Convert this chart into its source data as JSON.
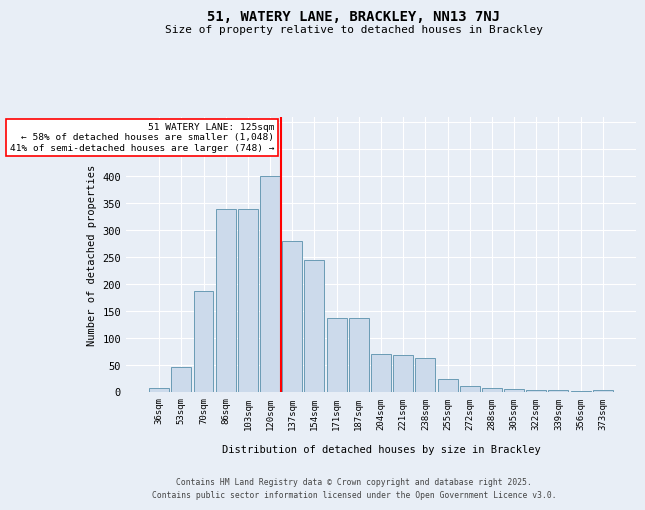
{
  "title": "51, WATERY LANE, BRACKLEY, NN13 7NJ",
  "subtitle": "Size of property relative to detached houses in Brackley",
  "xlabel": "Distribution of detached houses by size in Brackley",
  "ylabel": "Number of detached properties",
  "bar_labels": [
    "36sqm",
    "53sqm",
    "70sqm",
    "86sqm",
    "103sqm",
    "120sqm",
    "137sqm",
    "154sqm",
    "171sqm",
    "187sqm",
    "204sqm",
    "221sqm",
    "238sqm",
    "255sqm",
    "272sqm",
    "288sqm",
    "305sqm",
    "322sqm",
    "339sqm",
    "356sqm",
    "373sqm"
  ],
  "bar_heights": [
    8,
    47,
    188,
    340,
    340,
    400,
    280,
    245,
    138,
    138,
    70,
    68,
    63,
    25,
    12,
    7,
    5,
    3,
    3,
    2,
    3
  ],
  "bar_color": "#ccdaeb",
  "bar_edge_color": "#6a9bb5",
  "red_line_x": 5.5,
  "annotation_title": "51 WATERY LANE: 125sqm",
  "annotation_line2": "← 58% of detached houses are smaller (1,048)",
  "annotation_line3": "41% of semi-detached houses are larger (748) →",
  "ylim": [
    0,
    510
  ],
  "yticks": [
    0,
    50,
    100,
    150,
    200,
    250,
    300,
    350,
    400,
    450,
    500
  ],
  "bg_color": "#e8eef6",
  "grid_color": "#ffffff",
  "footer_line1": "Contains HM Land Registry data © Crown copyright and database right 2025.",
  "footer_line2": "Contains public sector information licensed under the Open Government Licence v3.0."
}
